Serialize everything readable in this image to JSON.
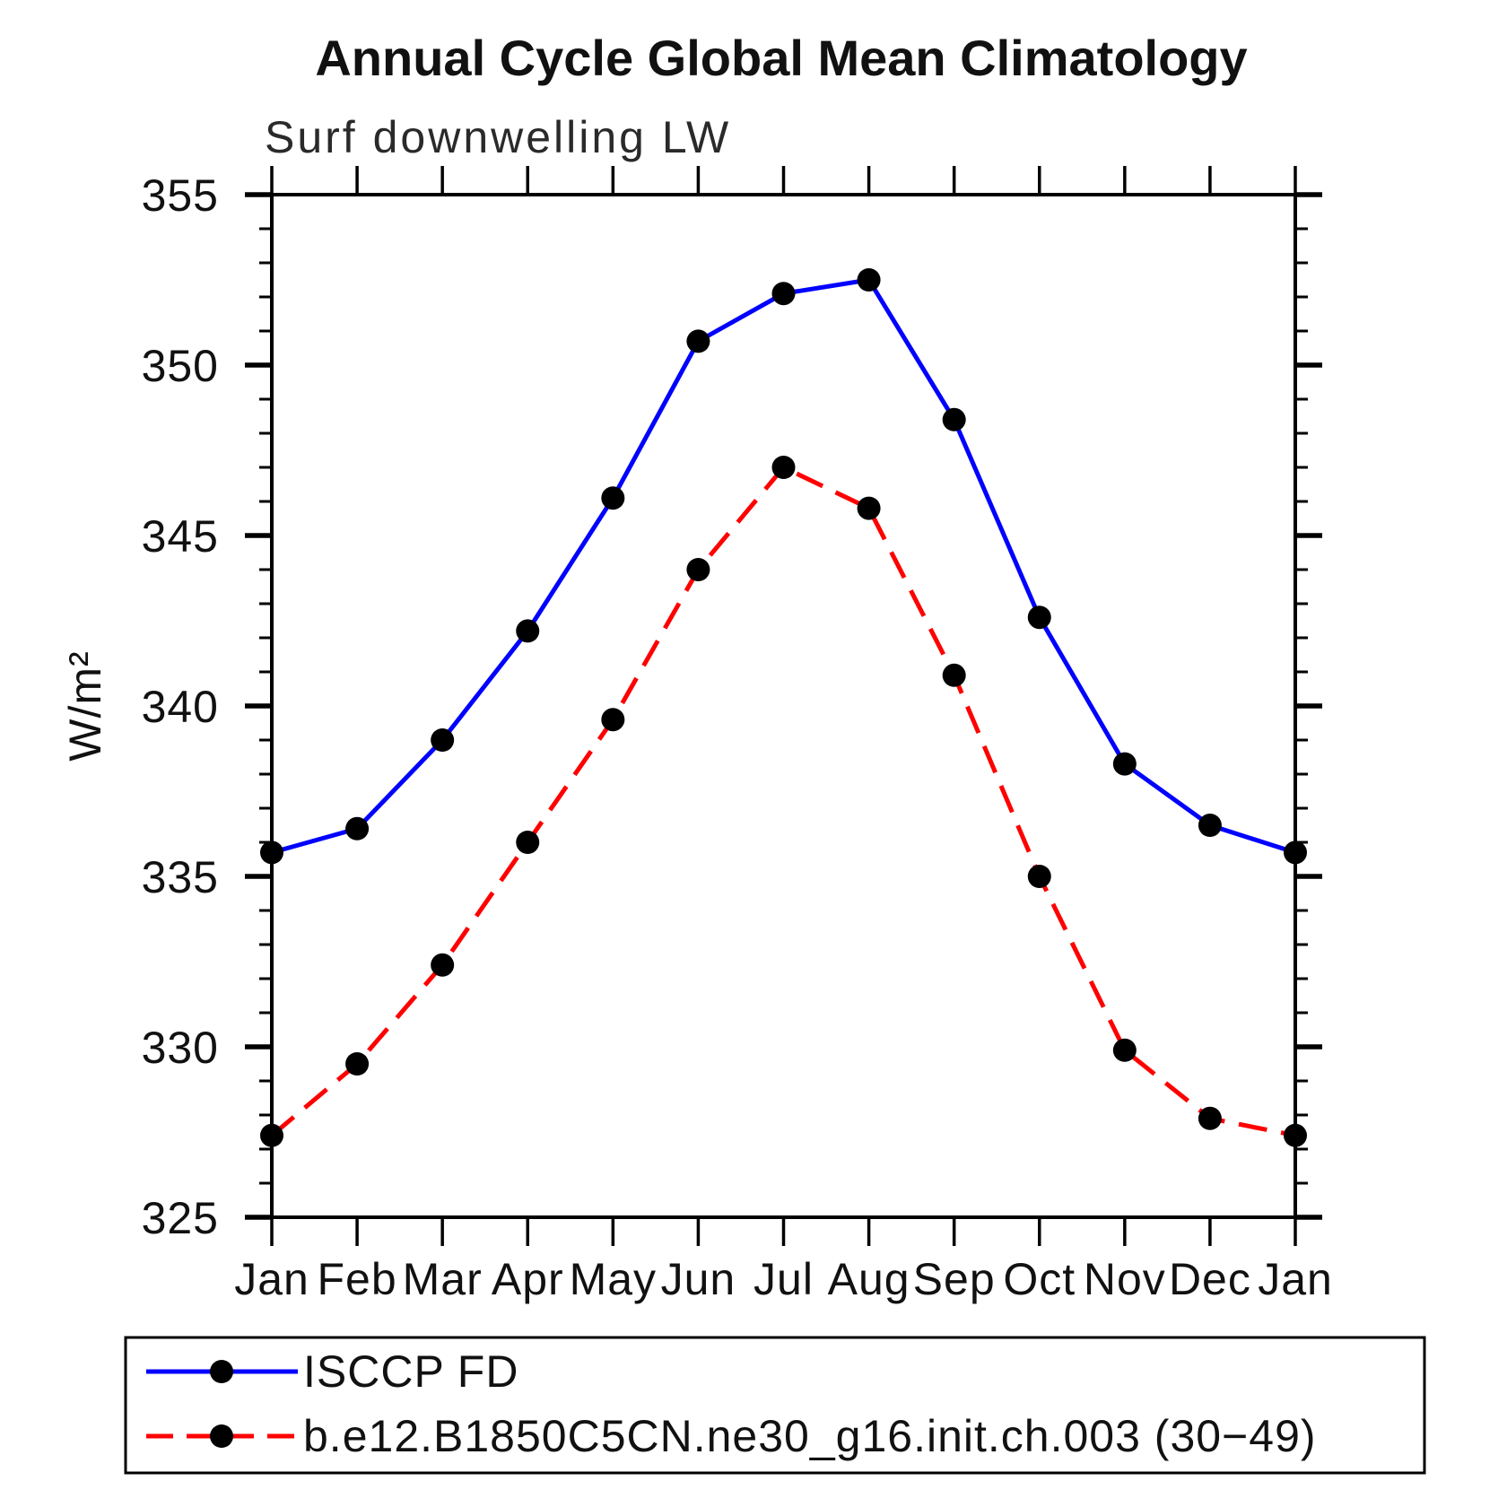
{
  "page": {
    "background": "#ffffff"
  },
  "chart_data": {
    "type": "line",
    "title": "Annual Cycle Global Mean Climatology",
    "subtitle": "Surf downwelling LW",
    "ylabel": "W/m²",
    "xlabel": "",
    "categories": [
      "Jan",
      "Feb",
      "Mar",
      "Apr",
      "May",
      "Jun",
      "Jul",
      "Aug",
      "Sep",
      "Oct",
      "Nov",
      "Dec",
      "Jan"
    ],
    "ylim": [
      325,
      355
    ],
    "ytick_major_interval": 5,
    "ytick_minor_interval": 1,
    "ytick_labels": [
      "325",
      "330",
      "335",
      "340",
      "345",
      "350",
      "355"
    ],
    "grid": false,
    "legend_position": "bottom-left-box",
    "axis_color": "#000000",
    "series": [
      {
        "name": "ISCCP FD",
        "line_style": "solid",
        "color": "#0000ff",
        "marker": "filled-circle",
        "marker_color": "#000000",
        "values": [
          335.7,
          336.4,
          339.0,
          342.2,
          346.1,
          350.7,
          352.1,
          352.5,
          348.4,
          342.6,
          338.3,
          336.5,
          335.7
        ]
      },
      {
        "name": "b.e12.B1850C5CN.ne30_g16.init.ch.003 (30−49)",
        "line_style": "dashed",
        "color": "#ff0000",
        "marker": "filled-circle",
        "marker_color": "#000000",
        "values": [
          327.4,
          329.5,
          332.4,
          336.0,
          339.6,
          344.0,
          347.0,
          345.8,
          340.9,
          335.0,
          329.9,
          327.9,
          327.4
        ]
      }
    ]
  }
}
